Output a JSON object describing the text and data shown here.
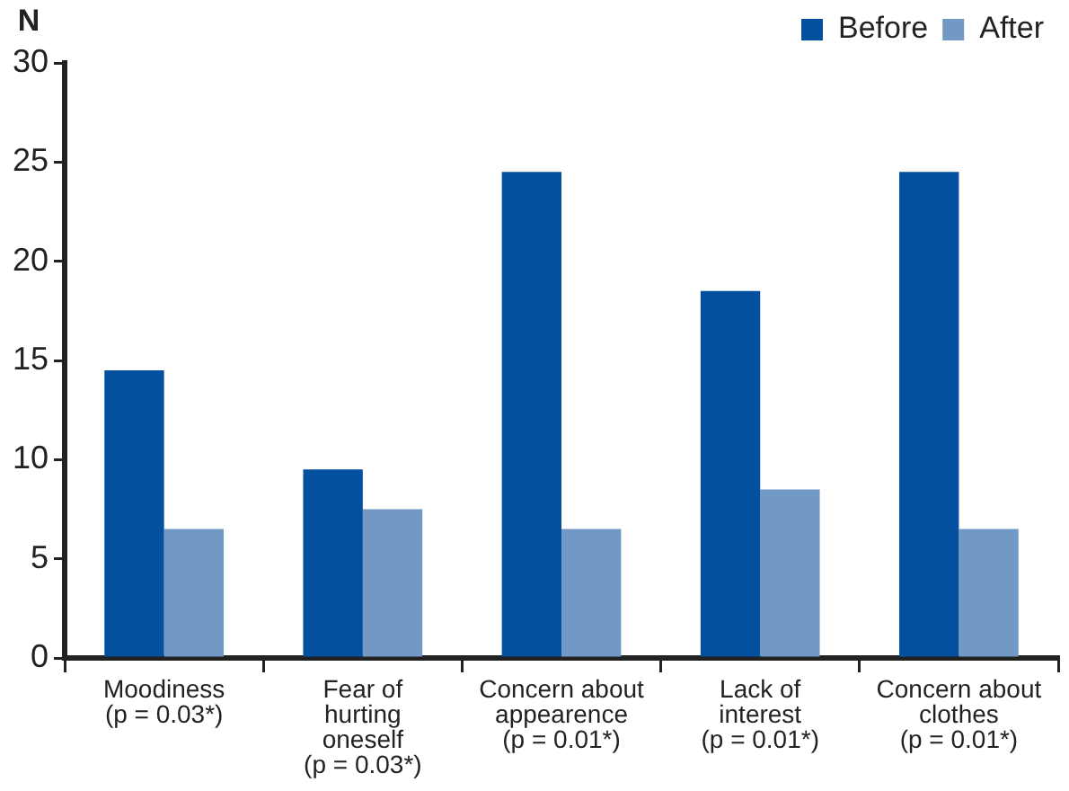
{
  "chart_data": {
    "type": "bar",
    "ylabel": "N",
    "categories": [
      "Moodiness (p = 0.03*)",
      "Fear of hurting oneself (p = 0.03*)",
      "Concern about appearence (p = 0.01*)",
      "Lack of interest (p = 0.01*)",
      "Concern about clothes (p = 0.01*)"
    ],
    "series": [
      {
        "name": "Before",
        "color": "#03519e",
        "values": [
          14.5,
          9.5,
          24.5,
          18.5,
          24.5
        ]
      },
      {
        "name": "After",
        "color": "#7299c6",
        "values": [
          6.5,
          7.5,
          6.5,
          8.5,
          6.5
        ]
      }
    ],
    "ylim": [
      0,
      30
    ],
    "yticks": [
      0,
      5,
      10,
      15,
      20,
      25,
      30
    ],
    "grid": false,
    "legend": "top right"
  }
}
